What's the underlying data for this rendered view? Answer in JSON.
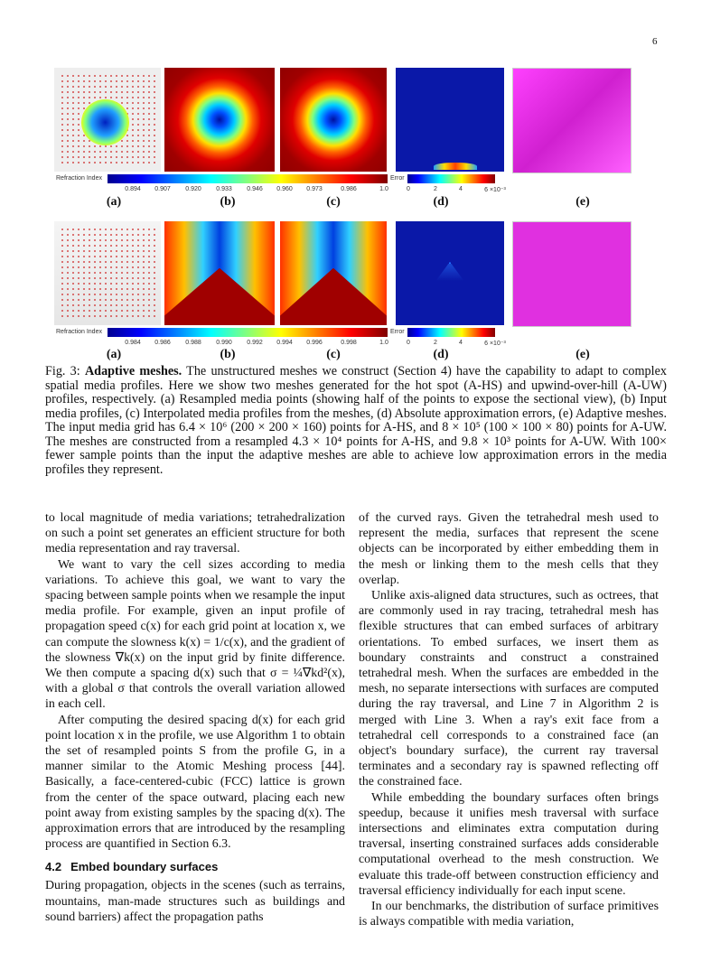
{
  "page_number": "6",
  "figure": {
    "row1": {
      "colorbar_label": "Refraction Index",
      "colorbar_ticks": [
        "0.894",
        "0.907",
        "0.920",
        "0.933",
        "0.946",
        "0.960",
        "0.973",
        "0.986",
        "1.0"
      ],
      "error_label": "Error",
      "error_ticks": [
        "0",
        "2",
        "4",
        "6 ×10⁻³"
      ],
      "subfig_labels": [
        "(a)",
        "(b)",
        "(c)",
        "(d)",
        "(e)"
      ]
    },
    "row2": {
      "colorbar_label": "Refraction Index",
      "colorbar_ticks": [
        "0.984",
        "0.986",
        "0.988",
        "0.990",
        "0.992",
        "0.994",
        "0.996",
        "0.998",
        "1.0"
      ],
      "error_label": "Error",
      "error_ticks": [
        "0",
        "2",
        "4",
        "6 ×10⁻³"
      ],
      "subfig_labels": [
        "(a)",
        "(b)",
        "(c)",
        "(d)",
        "(e)"
      ]
    },
    "colormap": [
      "#00008f",
      "#0000ff",
      "#00ffff",
      "#ffff00",
      "#ff0000",
      "#800000"
    ],
    "mesh_color": "#e030e0"
  },
  "caption": {
    "prefix": "Fig. 3: ",
    "title": "Adaptive meshes.",
    "text": " The unstructured meshes we construct (Section 4) have the capability to adapt to complex spatial media profiles. Here we show two meshes generated for the hot spot (A-HS) and upwind-over-hill (A-UW) profiles, respectively. (a) Resampled media points (showing half of the points to expose the sectional view), (b) Input media profiles, (c) Interpolated media profiles from the meshes, (d) Absolute approximation errors, (e) Adaptive meshes. The input media grid has 6.4 × 10⁶ (200 × 200 × 160) points for A-HS, and 8 × 10⁵ (100 × 100 × 80) points for A-UW. The meshes are constructed from a resampled 4.3 × 10⁴ points for A-HS, and 9.8 × 10³ points for A-UW. With 100× fewer sample points than the input the adaptive meshes are able to achieve low approximation errors in the media profiles they represent."
  },
  "left_column": {
    "p1": "to local magnitude of media variations; tetrahedralization on such a point set generates an efficient structure for both media representation and ray traversal.",
    "p2": "We want to vary the cell sizes according to media variations. To achieve this goal, we want to vary the spacing between sample points when we resample the input media profile. For example, given an input profile of propagation speed c(x) for each grid point at location x, we can compute the slowness k(x) = 1/c(x), and the gradient of the slowness ∇k(x) on the input grid by finite difference. We then compute a spacing d(x) such that σ = ¼∇kd²(x), with a global σ that controls the overall variation allowed in each cell.",
    "p3": "After computing the desired spacing d(x) for each grid point location x in the profile, we use Algorithm 1 to obtain the set of resampled points S from the profile G, in a manner similar to the Atomic Meshing process [44]. Basically, a face-centered-cubic (FCC) lattice is grown from the center of the space outward, placing each new point away from existing samples by the spacing d(x). The approximation errors that are introduced by the resampling process are quantified in Section 6.3.",
    "section_number": "4.2",
    "section_title": "Embed boundary surfaces",
    "p4": "During propagation, objects in the scenes (such as terrains, mountains, man-made structures such as buildings and sound barriers) affect the propagation paths"
  },
  "right_column": {
    "p1": "of the curved rays. Given the tetrahedral mesh used to represent the media, surfaces that represent the scene objects can be incorporated by either embedding them in the mesh or linking them to the mesh cells that they overlap.",
    "p2": "Unlike axis-aligned data structures, such as octrees, that are commonly used in ray tracing, tetrahedral mesh has flexible structures that can embed surfaces of arbitrary orientations. To embed surfaces, we insert them as boundary constraints and construct a constrained tetrahedral mesh. When the surfaces are embedded in the mesh, no separate intersections with surfaces are computed during the ray traversal, and Line 7 in Algorithm 2 is merged with Line 3. When a ray's exit face from a tetrahedral cell corresponds to a constrained face (an object's boundary surface), the current ray traversal terminates and a secondary ray is spawned reflecting off the constrained face.",
    "p3": "While embedding the boundary surfaces often brings speedup, because it unifies mesh traversal with surface intersections and eliminates extra computation during traversal, inserting constrained surfaces adds considerable computational overhead to the mesh construction. We evaluate this trade-off between construction efficiency and traversal efficiency individually for each input scene.",
    "p4": "In our benchmarks, the distribution of surface primitives is always compatible with media variation,"
  }
}
